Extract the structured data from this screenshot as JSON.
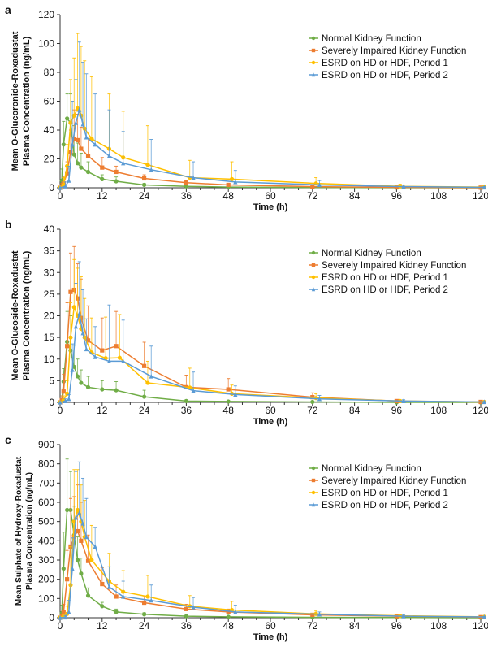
{
  "chart_data": [
    {
      "type": "line",
      "panel_label": "a",
      "ylabel": [
        "Mean O-Glucoronide-Roxadustat",
        "Plasma Concentration (ng/mL)"
      ],
      "xlabel": "Time (h)",
      "xlim": [
        0,
        120
      ],
      "ylim": [
        0,
        120
      ],
      "xticks": [
        0,
        12,
        24,
        36,
        48,
        60,
        72,
        84,
        96,
        108,
        120
      ],
      "yticks": [
        0,
        20,
        40,
        60,
        80,
        100,
        120
      ],
      "legend_position": "top-right",
      "series": [
        {
          "name": "Normal Kidney Function",
          "color": "#70ad47",
          "marker": "circle",
          "x": [
            0,
            0.5,
            1,
            2,
            3,
            4,
            5,
            6,
            8,
            12,
            16,
            24,
            36,
            48,
            72,
            96,
            120
          ],
          "y": [
            0,
            5,
            30,
            48,
            45,
            23,
            17,
            14,
            11,
            6,
            4.5,
            2,
            1,
            0.5,
            0.2,
            0.1,
            0
          ],
          "sd": [
            0,
            8,
            16,
            17,
            20,
            20,
            14,
            10,
            7,
            3,
            3,
            1,
            0.5,
            0.3,
            0.2,
            0.1,
            0
          ]
        },
        {
          "name": "Severely Impaired Kidney Function",
          "color": "#ed7d31",
          "marker": "square",
          "x": [
            0,
            0.5,
            1,
            2,
            3,
            4,
            5,
            6,
            8,
            12,
            16,
            24,
            36,
            48,
            72,
            96,
            120
          ],
          "y": [
            0,
            1,
            3,
            10,
            25,
            34,
            33,
            27,
            22,
            14,
            11,
            6.5,
            3.5,
            2,
            0.8,
            0.3,
            0.1
          ],
          "sd": [
            0,
            2,
            5,
            8,
            15,
            20,
            18,
            15,
            12,
            7,
            4,
            2.5,
            1.5,
            1,
            0.5,
            0.3,
            0.1
          ]
        },
        {
          "name": "ESRD on HD or HDF, Period 1",
          "color": "#ffc000",
          "marker": "circle",
          "x": [
            0,
            1,
            2,
            3,
            4,
            5,
            6,
            7,
            9,
            14,
            18,
            25,
            37,
            49,
            73,
            97,
            121
          ],
          "y": [
            0,
            2,
            15,
            45,
            50,
            55,
            50,
            41,
            34,
            27,
            21,
            16,
            7,
            6,
            3,
            1,
            0.5
          ],
          "sd": [
            0,
            5,
            15,
            30,
            40,
            52,
            48,
            47,
            43,
            38,
            32,
            27,
            12,
            12,
            4,
            1.5,
            1
          ]
        },
        {
          "name": "ESRD on HD or HDF, Period 2",
          "color": "#5b9bd5",
          "marker": "triangle",
          "x": [
            0,
            1.5,
            2.5,
            3.5,
            4.5,
            5.5,
            6.5,
            7.5,
            10,
            14,
            18,
            26,
            38,
            50,
            74,
            98,
            121
          ],
          "y": [
            0,
            1,
            5,
            30,
            45,
            54,
            44,
            35,
            30,
            22,
            17,
            12.5,
            7,
            4,
            2,
            0.8,
            0.3
          ],
          "sd": [
            0,
            3,
            10,
            30,
            30,
            47,
            43,
            44,
            35,
            32,
            22,
            21,
            11,
            8,
            3,
            1,
            0.5
          ]
        }
      ]
    },
    {
      "type": "line",
      "panel_label": "b",
      "ylabel": [
        "Mean O-Glucoside-Roxadustat",
        "Plasma Concentration (ng/mL)"
      ],
      "xlabel": "Time (h)",
      "xlim": [
        0,
        120
      ],
      "ylim": [
        0,
        40
      ],
      "xticks": [
        0,
        12,
        24,
        36,
        48,
        60,
        72,
        84,
        96,
        108,
        120
      ],
      "yticks": [
        0,
        5,
        10,
        15,
        20,
        25,
        30,
        35,
        40
      ],
      "legend_position": "top-right",
      "series": [
        {
          "name": "Normal Kidney Function",
          "color": "#70ad47",
          "marker": "circle",
          "x": [
            0,
            0.5,
            1,
            2,
            3,
            4,
            5,
            6,
            8,
            12,
            16,
            24,
            36,
            48,
            72,
            96,
            120
          ],
          "y": [
            0,
            0.5,
            4.8,
            14,
            12,
            8.2,
            6,
            4.5,
            3.5,
            3,
            2.8,
            1.3,
            0.3,
            0.2,
            0.1,
            0,
            0
          ],
          "sd": [
            0,
            1,
            3,
            7,
            8,
            5,
            4,
            3,
            2.5,
            2,
            2,
            1.5,
            0.3,
            0.2,
            0.1,
            0,
            0
          ]
        },
        {
          "name": "Severely Impaired Kidney Function",
          "color": "#ed7d31",
          "marker": "square",
          "x": [
            0,
            0.5,
            1,
            2,
            3,
            4,
            5,
            6,
            8,
            12,
            16,
            24,
            36,
            48,
            72,
            96,
            120
          ],
          "y": [
            0,
            0.5,
            2.5,
            13,
            25.5,
            26,
            24,
            19.5,
            14.3,
            12,
            13,
            8.4,
            3.5,
            3,
            1.2,
            0.3,
            0.1
          ],
          "sd": [
            0,
            1,
            4,
            10,
            9,
            10,
            8,
            9,
            8,
            7.5,
            8,
            5.5,
            2.8,
            2.5,
            1,
            0.3,
            0.1
          ]
        },
        {
          "name": "ESRD on HD or HDF, Period 1",
          "color": "#ffc000",
          "marker": "circle",
          "x": [
            0,
            1,
            2,
            3,
            4,
            5,
            6,
            7,
            9,
            13,
            17,
            25,
            37,
            49,
            73,
            97,
            121
          ],
          "y": [
            0,
            0.5,
            2,
            15,
            22,
            20,
            17,
            15,
            11.5,
            10.2,
            10.3,
            4.5,
            3.4,
            2,
            1,
            0.3,
            0.1
          ],
          "sd": [
            0,
            1,
            3,
            8,
            11,
            11,
            12,
            9,
            8,
            9.5,
            10,
            5,
            4.5,
            2,
            1,
            0.3,
            0.1
          ]
        },
        {
          "name": "ESRD on HD or HDF, Period 2",
          "color": "#5b9bd5",
          "marker": "triangle",
          "x": [
            0,
            1.5,
            2.5,
            3.5,
            4.5,
            5.5,
            6.5,
            7.5,
            10,
            14,
            18,
            26,
            38,
            50,
            74,
            98,
            121
          ],
          "y": [
            0,
            0.3,
            0.8,
            7.5,
            17.5,
            20.5,
            16,
            12.3,
            10.5,
            9.5,
            9.5,
            6,
            2.7,
            1.8,
            0.8,
            0.3,
            0.1
          ],
          "sd": [
            0,
            0.5,
            1,
            6,
            10,
            12,
            10,
            7,
            7,
            13,
            9.5,
            7,
            4.3,
            2,
            0.8,
            0.3,
            0.1
          ]
        }
      ]
    },
    {
      "type": "line",
      "panel_label": "c",
      "ylabel": [
        "Mean Sulphate of Hydroxy-Roxadustat",
        "Plasma Concentration (ng/mL)"
      ],
      "xlabel": "Time (h)",
      "xlim": [
        0,
        120
      ],
      "ylim": [
        0,
        900
      ],
      "xticks": [
        0,
        12,
        24,
        36,
        48,
        60,
        72,
        84,
        96,
        108,
        120
      ],
      "yticks": [
        0,
        100,
        200,
        300,
        400,
        500,
        600,
        700,
        800,
        900
      ],
      "legend_position": "top-right",
      "series": [
        {
          "name": "Normal Kidney Function",
          "color": "#70ad47",
          "marker": "circle",
          "x": [
            0,
            0.5,
            1,
            2,
            3,
            4,
            5,
            6,
            8,
            12,
            16,
            24,
            36,
            48,
            72,
            96,
            120
          ],
          "y": [
            0,
            25,
            255,
            560,
            560,
            430,
            300,
            230,
            115,
            60,
            30,
            18,
            8,
            5,
            2,
            1,
            0
          ],
          "sd": [
            0,
            40,
            190,
            265,
            200,
            150,
            120,
            80,
            40,
            20,
            15,
            8,
            4,
            3,
            2,
            1,
            0
          ]
        },
        {
          "name": "Severely Impaired Kidney Function",
          "color": "#ed7d31",
          "marker": "square",
          "x": [
            0,
            0.5,
            1,
            2,
            3,
            4,
            5,
            6,
            8,
            12,
            16,
            24,
            36,
            48,
            72,
            96,
            120
          ],
          "y": [
            0,
            5,
            30,
            200,
            370,
            420,
            450,
            400,
            295,
            175,
            110,
            78,
            45,
            30,
            15,
            8,
            3
          ],
          "sd": [
            0,
            10,
            40,
            150,
            250,
            210,
            240,
            200,
            135,
            85,
            60,
            35,
            25,
            15,
            8,
            5,
            2
          ]
        },
        {
          "name": "ESRD on HD or HDF, Period 1",
          "color": "#ffc000",
          "marker": "circle",
          "x": [
            0,
            1,
            2,
            3,
            4,
            5,
            6,
            7,
            9,
            14,
            18,
            25,
            37,
            49,
            73,
            97,
            121
          ],
          "y": [
            0,
            5,
            20,
            170,
            500,
            560,
            500,
            420,
            300,
            190,
            135,
            110,
            60,
            40,
            20,
            10,
            5
          ],
          "sd": [
            0,
            10,
            40,
            200,
            270,
            210,
            190,
            190,
            180,
            145,
            110,
            110,
            55,
            45,
            15,
            8,
            4
          ]
        },
        {
          "name": "ESRD on HD or HDF, Period 2",
          "color": "#5b9bd5",
          "marker": "triangle",
          "x": [
            0,
            1.5,
            2.5,
            3.5,
            4.5,
            5.5,
            6.5,
            7.5,
            10,
            14,
            18,
            26,
            38,
            50,
            74,
            98,
            121
          ],
          "y": [
            0,
            2,
            30,
            255,
            520,
            545,
            490,
            420,
            370,
            160,
            110,
            90,
            55,
            30,
            18,
            8,
            4
          ],
          "sd": [
            0,
            10,
            60,
            160,
            240,
            265,
            235,
            200,
            100,
            105,
            80,
            80,
            50,
            35,
            12,
            6,
            3
          ]
        }
      ]
    }
  ]
}
